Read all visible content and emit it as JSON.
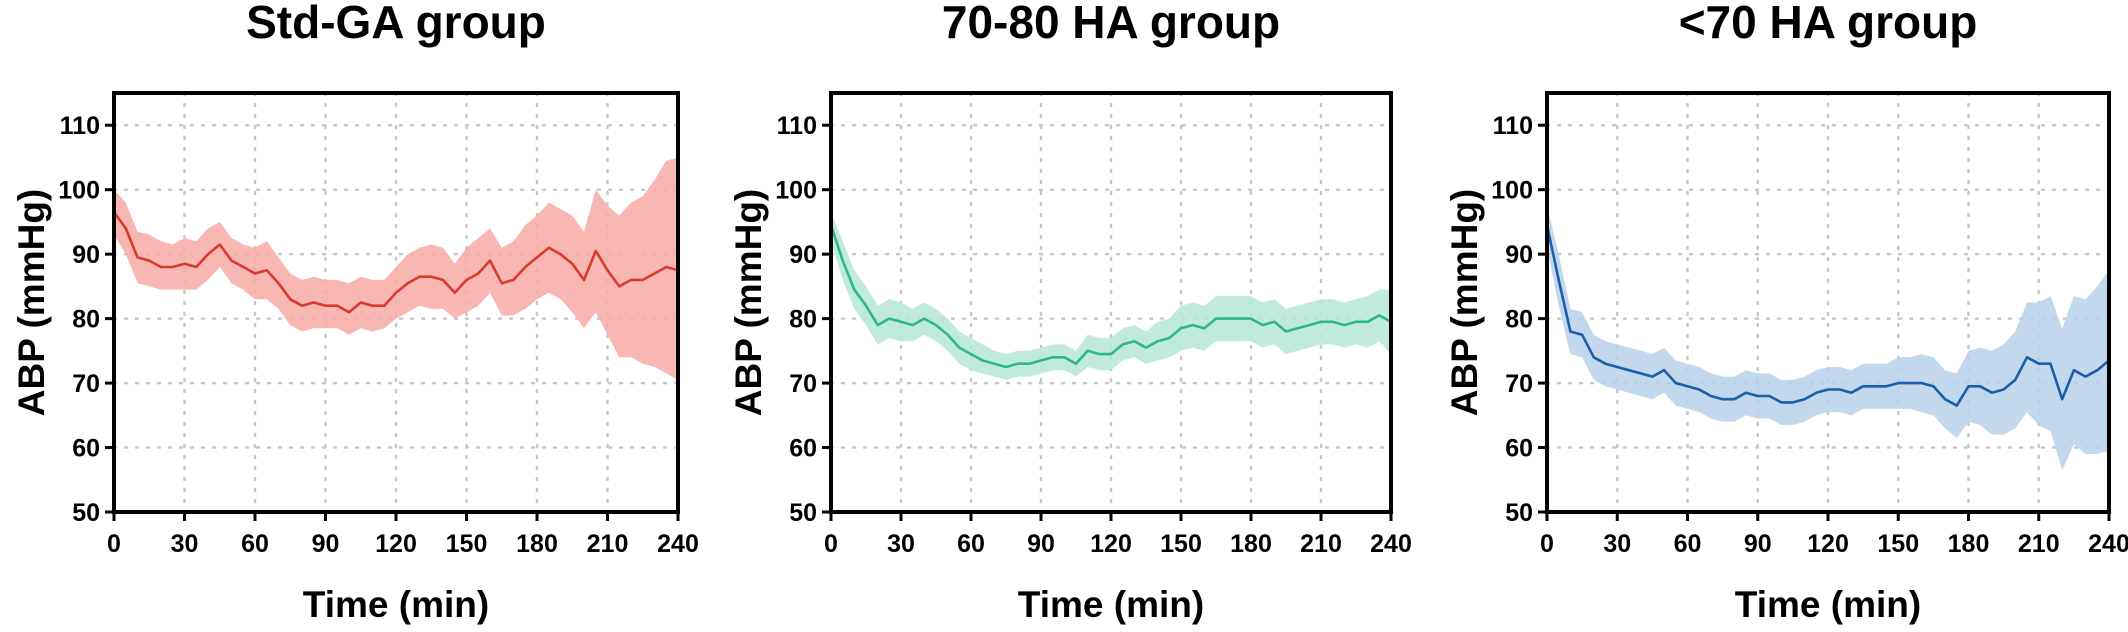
{
  "chart_data": [
    {
      "type": "line",
      "title": "Std-GA group",
      "xlabel": "Time (min)",
      "ylabel": "ABP (mmHg)",
      "xlim": [
        0,
        240
      ],
      "ylim": [
        50,
        115
      ],
      "xticks": [
        0,
        30,
        60,
        90,
        120,
        150,
        180,
        210,
        240
      ],
      "yticks": [
        50,
        60,
        70,
        80,
        90,
        100,
        110
      ],
      "grid": true,
      "color": "#d93a2e",
      "band_color": "#f7aaa6",
      "series": [
        {
          "x": [
            0,
            5,
            10,
            15,
            20,
            25,
            30,
            35,
            40,
            45,
            50,
            55,
            60,
            65,
            70,
            75,
            80,
            85,
            90,
            95,
            100,
            105,
            110,
            115,
            120,
            125,
            130,
            135,
            140,
            145,
            150,
            155,
            160,
            165,
            170,
            175,
            180,
            185,
            190,
            195,
            200,
            205,
            210,
            215,
            220,
            225,
            230,
            235,
            240
          ],
          "mean": [
            96.5,
            94,
            89.5,
            89,
            88,
            88,
            88.5,
            88,
            90,
            91.5,
            89,
            88,
            87,
            87.5,
            85.5,
            83,
            82,
            82.5,
            82,
            82,
            81,
            82.5,
            82,
            82,
            84,
            85.5,
            86.5,
            86.5,
            86,
            84,
            86,
            87,
            89,
            85.5,
            86,
            88,
            89.5,
            91,
            90,
            88.5,
            86,
            90.5,
            87.5,
            85,
            86,
            86,
            87,
            88,
            87.5
          ],
          "lower": [
            93,
            90,
            85.5,
            85,
            84.5,
            84.5,
            84.5,
            84.5,
            86,
            88,
            85.5,
            84.5,
            83,
            83,
            81.5,
            79,
            78,
            78.5,
            78.5,
            78.5,
            77.5,
            78.5,
            78,
            78.5,
            80,
            81,
            82,
            81.5,
            81.5,
            80,
            81,
            82,
            84,
            80.5,
            80.5,
            81.5,
            83,
            84,
            83,
            81,
            78.5,
            81,
            77.5,
            74,
            74,
            73,
            72.5,
            71.5,
            70.5
          ],
          "upper": [
            100,
            98,
            93.5,
            93,
            92,
            91.5,
            92.5,
            92,
            94,
            95,
            92.5,
            91.5,
            91,
            92,
            89.5,
            87,
            86,
            86.5,
            86,
            86,
            85.5,
            86.5,
            86,
            86,
            88,
            90,
            91,
            91.5,
            91,
            88.5,
            91,
            92.5,
            94,
            91,
            92,
            94.5,
            96,
            98,
            97,
            96,
            93.5,
            100,
            97.5,
            96,
            98,
            99,
            101.5,
            104.5,
            105
          ]
        }
      ]
    },
    {
      "type": "line",
      "title": "70-80 HA group",
      "xlabel": "Time (min)",
      "ylabel": "ABP (mmHg)",
      "xlim": [
        0,
        240
      ],
      "ylim": [
        50,
        115
      ],
      "xticks": [
        0,
        30,
        60,
        90,
        120,
        150,
        180,
        210,
        240
      ],
      "yticks": [
        50,
        60,
        70,
        80,
        90,
        100,
        110
      ],
      "grid": true,
      "color": "#2cb888",
      "band_color": "#b5e6d2",
      "series": [
        {
          "x": [
            0,
            5,
            10,
            15,
            20,
            25,
            30,
            35,
            40,
            45,
            50,
            55,
            60,
            65,
            70,
            75,
            80,
            85,
            90,
            95,
            100,
            105,
            110,
            115,
            120,
            125,
            130,
            135,
            140,
            145,
            150,
            155,
            160,
            165,
            170,
            175,
            180,
            185,
            190,
            195,
            200,
            205,
            210,
            215,
            220,
            225,
            230,
            235,
            240
          ],
          "mean": [
            94.5,
            89,
            84.5,
            82,
            79,
            80,
            79.5,
            79,
            80,
            79,
            77.5,
            75.5,
            74.5,
            73.5,
            73,
            72.5,
            73,
            73,
            73.5,
            74,
            74,
            73,
            75,
            74.5,
            74.5,
            76,
            76.5,
            75.5,
            76.5,
            77,
            78.5,
            79,
            78.5,
            80,
            80,
            80,
            80,
            79,
            79.5,
            78,
            78.5,
            79,
            79.5,
            79.5,
            79,
            79.5,
            79.5,
            80.5,
            79.5
          ],
          "lower": [
            92,
            86,
            81.5,
            79,
            76,
            77,
            76.5,
            76.5,
            77.5,
            76.5,
            75,
            73,
            72,
            71.5,
            71,
            70.5,
            71,
            71,
            71.5,
            72,
            72,
            71,
            72.5,
            72,
            72,
            73.5,
            74,
            73,
            73.5,
            74,
            75,
            75.5,
            75,
            76.5,
            76.5,
            76.5,
            76.5,
            75.5,
            76,
            74.5,
            75,
            75.5,
            76,
            76,
            75.5,
            76,
            75.5,
            76.5,
            74.5
          ],
          "upper": [
            96.5,
            92,
            87.5,
            85,
            82,
            83,
            82.5,
            81.5,
            82.5,
            81.5,
            80,
            78,
            77,
            76,
            75,
            74.5,
            75,
            75,
            75.5,
            76,
            76,
            75,
            77.5,
            77,
            77,
            78.5,
            79,
            78,
            79.5,
            80,
            82,
            82.5,
            82,
            83.5,
            83.5,
            83.5,
            83.5,
            82.5,
            83,
            81.5,
            82,
            82.5,
            83,
            83,
            82.5,
            83,
            83.5,
            84.5,
            84.5
          ]
        }
      ]
    },
    {
      "type": "line",
      "title": "<70 HA group",
      "xlabel": "Time (min)",
      "ylabel": "ABP (mmHg)",
      "xlim": [
        0,
        240
      ],
      "ylim": [
        50,
        115
      ],
      "xticks": [
        0,
        30,
        60,
        90,
        120,
        150,
        180,
        210,
        240
      ],
      "yticks": [
        50,
        60,
        70,
        80,
        90,
        100,
        110
      ],
      "grid": true,
      "color": "#1a5fa8",
      "band_color": "#b9d0ea",
      "series": [
        {
          "x": [
            0,
            5,
            10,
            15,
            20,
            25,
            30,
            35,
            40,
            45,
            50,
            55,
            60,
            65,
            70,
            75,
            80,
            85,
            90,
            95,
            100,
            105,
            110,
            115,
            120,
            125,
            130,
            135,
            140,
            145,
            150,
            155,
            160,
            165,
            170,
            175,
            180,
            185,
            190,
            195,
            200,
            205,
            210,
            215,
            220,
            225,
            230,
            235,
            240
          ],
          "mean": [
            94.5,
            86,
            78,
            77.5,
            74,
            73,
            72.5,
            72,
            71.5,
            71,
            72,
            70,
            69.5,
            69,
            68,
            67.5,
            67.5,
            68.5,
            68,
            68,
            67,
            67,
            67.5,
            68.5,
            69,
            69,
            68.5,
            69.5,
            69.5,
            69.5,
            70,
            70,
            70,
            69.5,
            67.5,
            66.5,
            69.5,
            69.5,
            68.5,
            69,
            70.5,
            74,
            73,
            73,
            67.5,
            72,
            71,
            72,
            73.5
          ],
          "lower": [
            91,
            82,
            74.5,
            74,
            70.5,
            69.5,
            69,
            68.5,
            68,
            67.5,
            68.5,
            66.5,
            66,
            65.5,
            64.5,
            64,
            64,
            65,
            64.5,
            64.5,
            63.5,
            63.5,
            64,
            65,
            65.5,
            65.5,
            65,
            66,
            66,
            66,
            66,
            66,
            65.5,
            65,
            63,
            61.5,
            64,
            63.5,
            62,
            62,
            63,
            65.5,
            63.5,
            62.5,
            56.5,
            60.5,
            59,
            59,
            59.5
          ],
          "upper": [
            97.5,
            90,
            81.5,
            81,
            77.5,
            76.5,
            76,
            75.5,
            75,
            74.5,
            75.5,
            73.5,
            73,
            72.5,
            71.5,
            71,
            71,
            72,
            71.5,
            71.5,
            70.5,
            70.5,
            71,
            72,
            72.5,
            72.5,
            72,
            73,
            73,
            73,
            74,
            74,
            74.5,
            74,
            72,
            71.5,
            75,
            75.5,
            75,
            76,
            78,
            82.5,
            82.5,
            83.5,
            78.5,
            83.5,
            83,
            85,
            87.5
          ]
        }
      ]
    }
  ]
}
